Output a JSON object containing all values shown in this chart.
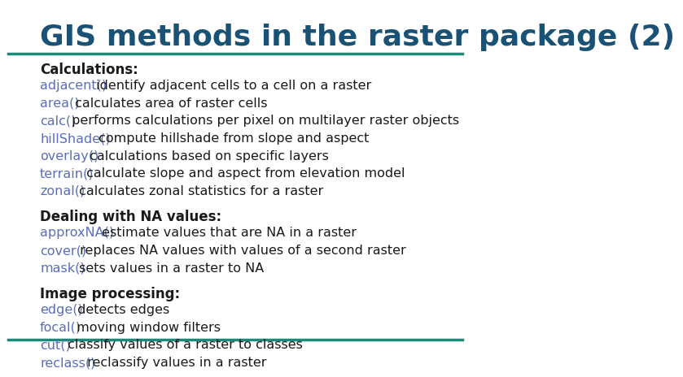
{
  "title": "GIS methods in the raster package (2)",
  "title_color": "#1a5276",
  "title_fontsize": 26,
  "bg_color": "#ffffff",
  "header_line_color": "#1a8a7a",
  "bottom_line_color": "#1a8a7a",
  "func_color": "#5b6fba",
  "text_color": "#1a1a1a",
  "section1_header": "Calculations:",
  "section1_lines": [
    {
      "func": "adjacent()",
      "desc": " identify adjacent cells to a cell on a raster"
    },
    {
      "func": "area()",
      "desc": " calculates area of raster cells"
    },
    {
      "func": "calc()",
      "desc": " performs calculations per pixel on multilayer raster objects"
    },
    {
      "func": "hillShade()",
      "desc": " compute hillshade from slope and aspect"
    },
    {
      "func": "overlay()",
      "desc": " calculations based on specific layers"
    },
    {
      "func": "terrain()",
      "desc": " calculate slope and aspect from elevation model"
    },
    {
      "func": "zonal()",
      "desc": " calculates zonal statistics for a raster"
    }
  ],
  "section2_header": "Dealing with NA values:",
  "section2_lines": [
    {
      "func": "approxNA()",
      "desc": " estimate values that are NA in a raster"
    },
    {
      "func": "cover()",
      "desc": " replaces NA values with values of a second raster"
    },
    {
      "func": "mask()",
      "desc": " sets values in a raster to NA"
    }
  ],
  "section3_header": "Image processing:",
  "section3_lines": [
    {
      "func": "edge()",
      "desc": " detects edges"
    },
    {
      "func": "focal()",
      "desc": " moving window filters"
    },
    {
      "func": "cut()",
      "desc": " classify values of a raster to classes"
    },
    {
      "func": "reclass()",
      "desc": " reclassify values in a raster"
    }
  ]
}
